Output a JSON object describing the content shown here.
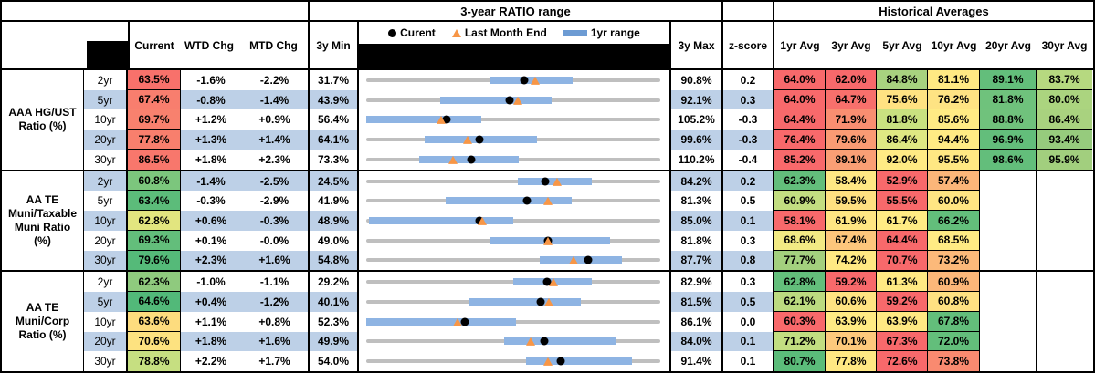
{
  "header": {
    "ratio_range_title": "3-year RATIO range",
    "historical_title": "Historical Averages",
    "col_current": "Current",
    "col_wtd": "WTD Chg",
    "col_mtd": "MTD Chg",
    "col_3y_min": "3y Min",
    "col_3y_max": "3y Max",
    "col_zscore": "z-score",
    "hist_cols": [
      "1yr Avg",
      "3yr Avg",
      "5yr Avg",
      "10yr Avg",
      "20yr Avg",
      "30yr Avg"
    ],
    "legend": [
      {
        "label": "Curent",
        "marker": "current-dot"
      },
      {
        "label": "Last Month End",
        "marker": "last-month-triangle"
      },
      {
        "label": "1yr range",
        "marker": "one-year-range-bar"
      }
    ]
  },
  "colors": {
    "row_band": "#BDD0E7",
    "range_bar": "#8EB4E3",
    "range_track": "#BFBFBF",
    "current_dot": "#000000",
    "last_month_triangle": "#F79646",
    "legend_bar_swatch": "#6D9BD3",
    "heat_red": "#F8696B",
    "heat_yellow": "#FFEB84",
    "heat_green": "#63BE7B"
  },
  "groups": [
    {
      "label": "AAA HG/UST\nRatio (%)",
      "rows": [
        {
          "tenor": "2yr",
          "banded": false,
          "current": "63.5%",
          "current_bg": "#F8716B",
          "wtd": "-1.6%",
          "mtd": "-2.2%",
          "min": "31.7%",
          "max": "90.8%",
          "z": "0.2",
          "bar": [
            41.9,
            70.2
          ],
          "dot": 53.8,
          "tri": 57.5,
          "hist": [
            {
              "v": "64.0%",
              "bg": "#F8696B"
            },
            {
              "v": "62.0%",
              "bg": "#F8696B"
            },
            {
              "v": "84.8%",
              "bg": "#A8D27F"
            },
            {
              "v": "81.1%",
              "bg": "#FFE983"
            },
            {
              "v": "89.1%",
              "bg": "#63BE7B"
            },
            {
              "v": "83.7%",
              "bg": "#B6D980"
            }
          ]
        },
        {
          "tenor": "5yr",
          "banded": true,
          "current": "67.4%",
          "current_bg": "#F87E6E",
          "wtd": "-0.8%",
          "mtd": "-1.4%",
          "min": "43.9%",
          "max": "92.1%",
          "z": "0.3",
          "bar": [
            25.0,
            63.0
          ],
          "dot": 48.8,
          "tri": 51.7,
          "hist": [
            {
              "v": "64.0%",
              "bg": "#F8696B"
            },
            {
              "v": "64.7%",
              "bg": "#F8706C"
            },
            {
              "v": "75.6%",
              "bg": "#FFE282"
            },
            {
              "v": "76.2%",
              "bg": "#FEE383"
            },
            {
              "v": "81.8%",
              "bg": "#6FC27C"
            },
            {
              "v": "80.0%",
              "bg": "#ABD47F"
            }
          ]
        },
        {
          "tenor": "10yr",
          "banded": false,
          "current": "69.7%",
          "current_bg": "#F8816E",
          "wtd": "+1.2%",
          "mtd": "+0.9%",
          "min": "56.4%",
          "max": "105.2%",
          "z": "-0.3",
          "bar": [
            0.0,
            39.0
          ],
          "dot": 27.3,
          "tri": 25.4,
          "hist": [
            {
              "v": "64.4%",
              "bg": "#F8696B"
            },
            {
              "v": "71.9%",
              "bg": "#F98E71"
            },
            {
              "v": "81.8%",
              "bg": "#C9E180"
            },
            {
              "v": "85.6%",
              "bg": "#FFEB84"
            },
            {
              "v": "88.8%",
              "bg": "#70C27C"
            },
            {
              "v": "86.4%",
              "bg": "#A9D27F"
            }
          ]
        },
        {
          "tenor": "20yr",
          "banded": true,
          "current": "77.8%",
          "current_bg": "#F87F6D",
          "wtd": "+1.3%",
          "mtd": "+1.4%",
          "min": "64.1%",
          "max": "99.6%",
          "z": "-0.3",
          "bar": [
            20.0,
            58.0
          ],
          "dot": 38.6,
          "tri": 34.6,
          "hist": [
            {
              "v": "76.4%",
              "bg": "#F8696B"
            },
            {
              "v": "79.6%",
              "bg": "#FA9B74"
            },
            {
              "v": "86.4%",
              "bg": "#DFE883"
            },
            {
              "v": "94.4%",
              "bg": "#FFEB84"
            },
            {
              "v": "96.9%",
              "bg": "#63BE7B"
            },
            {
              "v": "93.4%",
              "bg": "#96CB7D"
            }
          ]
        },
        {
          "tenor": "30yr",
          "banded": false,
          "current": "86.5%",
          "current_bg": "#F8776C",
          "wtd": "+1.8%",
          "mtd": "+2.3%",
          "min": "73.3%",
          "max": "110.2%",
          "z": "-0.4",
          "bar": [
            18.0,
            52.0
          ],
          "dot": 35.8,
          "tri": 29.5,
          "hist": [
            {
              "v": "85.2%",
              "bg": "#F8696B"
            },
            {
              "v": "89.1%",
              "bg": "#FA9F75"
            },
            {
              "v": "92.0%",
              "bg": "#FFEB84"
            },
            {
              "v": "95.5%",
              "bg": "#FFE883"
            },
            {
              "v": "98.6%",
              "bg": "#63BE7B"
            },
            {
              "v": "95.9%",
              "bg": "#A2CF7E"
            }
          ]
        }
      ]
    },
    {
      "label": "AA TE\nMuni/Taxable\nMuni Ratio\n(%)",
      "rows": [
        {
          "tenor": "2yr",
          "banded": true,
          "current": "60.8%",
          "current_bg": "#7CC67D",
          "wtd": "-1.4%",
          "mtd": "-2.5%",
          "min": "24.5%",
          "max": "84.2%",
          "z": "0.2",
          "bar": [
            51.5,
            76.8
          ],
          "dot": 60.8,
          "tri": 65.0,
          "hist": [
            {
              "v": "62.3%",
              "bg": "#63BE7B"
            },
            {
              "v": "58.4%",
              "bg": "#FFE884"
            },
            {
              "v": "52.9%",
              "bg": "#F8696B"
            },
            {
              "v": "57.4%",
              "bg": "#FCB679"
            },
            null,
            null
          ]
        },
        {
          "tenor": "5yr",
          "banded": false,
          "current": "63.4%",
          "current_bg": "#5CBC7A",
          "wtd": "-0.3%",
          "mtd": "-2.9%",
          "min": "41.9%",
          "max": "81.3%",
          "z": "0.5",
          "bar": [
            27.0,
            70.0
          ],
          "dot": 54.6,
          "tri": 61.9,
          "hist": [
            {
              "v": "60.9%",
              "bg": "#C3DE81"
            },
            {
              "v": "59.5%",
              "bg": "#FFE181"
            },
            {
              "v": "55.5%",
              "bg": "#F8696B"
            },
            {
              "v": "60.0%",
              "bg": "#FFE583"
            },
            null,
            null
          ]
        },
        {
          "tenor": "10yr",
          "banded": true,
          "current": "62.8%",
          "current_bg": "#E2E57F",
          "wtd": "+0.6%",
          "mtd": "-0.3%",
          "min": "48.9%",
          "max": "85.0%",
          "z": "0.1",
          "bar": [
            1.0,
            50.0
          ],
          "dot": 38.5,
          "tri": 39.3,
          "hist": [
            {
              "v": "58.1%",
              "bg": "#F8696B"
            },
            {
              "v": "61.9%",
              "bg": "#FFE683"
            },
            {
              "v": "61.7%",
              "bg": "#FFEB84"
            },
            {
              "v": "66.2%",
              "bg": "#63BE7B"
            },
            null,
            null
          ]
        },
        {
          "tenor": "20yr",
          "banded": false,
          "current": "69.3%",
          "current_bg": "#63BE7B",
          "wtd": "+0.1%",
          "mtd": "-0.0%",
          "min": "49.0%",
          "max": "81.8%",
          "z": "0.3",
          "bar": [
            42.0,
            83.0
          ],
          "dot": 61.9,
          "tri": 61.9,
          "hist": [
            {
              "v": "68.6%",
              "bg": "#F2EA84"
            },
            {
              "v": "67.4%",
              "bg": "#FDC67C"
            },
            {
              "v": "64.4%",
              "bg": "#F8696B"
            },
            {
              "v": "68.5%",
              "bg": "#FFEB84"
            },
            null,
            null
          ]
        },
        {
          "tenor": "30yr",
          "banded": true,
          "current": "79.6%",
          "current_bg": "#55BA79",
          "wtd": "+2.3%",
          "mtd": "+1.6%",
          "min": "54.8%",
          "max": "87.7%",
          "z": "0.8",
          "bar": [
            59.0,
            87.0
          ],
          "dot": 75.4,
          "tri": 70.5,
          "hist": [
            {
              "v": "77.7%",
              "bg": "#A3D07E"
            },
            {
              "v": "74.2%",
              "bg": "#FFE983"
            },
            {
              "v": "70.7%",
              "bg": "#F8696B"
            },
            {
              "v": "73.2%",
              "bg": "#FCB97A"
            },
            null,
            null
          ]
        }
      ]
    },
    {
      "label": "AA TE\nMuni/Corp\nRatio (%)",
      "rows": [
        {
          "tenor": "2yr",
          "banded": false,
          "current": "62.3%",
          "current_bg": "#8FCA7E",
          "wtd": "-1.0%",
          "mtd": "-1.1%",
          "min": "29.2%",
          "max": "82.9%",
          "z": "0.3",
          "bar": [
            50.0,
            76.8
          ],
          "dot": 61.6,
          "tri": 63.7,
          "hist": [
            {
              "v": "62.8%",
              "bg": "#63BE7B"
            },
            {
              "v": "59.2%",
              "bg": "#F8696B"
            },
            {
              "v": "61.3%",
              "bg": "#FFE983"
            },
            {
              "v": "60.9%",
              "bg": "#FCB779"
            },
            null,
            null
          ]
        },
        {
          "tenor": "5yr",
          "banded": true,
          "current": "64.6%",
          "current_bg": "#52B979",
          "wtd": "+0.4%",
          "mtd": "-1.2%",
          "min": "40.1%",
          "max": "81.5%",
          "z": "0.5",
          "bar": [
            35.0,
            73.0
          ],
          "dot": 59.2,
          "tri": 62.1,
          "hist": [
            {
              "v": "62.1%",
              "bg": "#BCDB80"
            },
            {
              "v": "60.6%",
              "bg": "#FFE382"
            },
            {
              "v": "59.2%",
              "bg": "#F8696B"
            },
            {
              "v": "60.8%",
              "bg": "#FFE182"
            },
            null,
            null
          ]
        },
        {
          "tenor": "10yr",
          "banded": false,
          "current": "63.6%",
          "current_bg": "#FDDC7E",
          "wtd": "+1.1%",
          "mtd": "+0.8%",
          "min": "52.3%",
          "max": "86.1%",
          "z": "0.0",
          "bar": [
            0.0,
            51.0
          ],
          "dot": 33.4,
          "tri": 31.1,
          "hist": [
            {
              "v": "60.3%",
              "bg": "#F8696B"
            },
            {
              "v": "63.9%",
              "bg": "#FFEB84"
            },
            {
              "v": "63.9%",
              "bg": "#FFE883"
            },
            {
              "v": "67.8%",
              "bg": "#63BE7B"
            },
            null,
            null
          ]
        },
        {
          "tenor": "20yr",
          "banded": true,
          "current": "70.6%",
          "current_bg": "#FDE280",
          "wtd": "+1.8%",
          "mtd": "+1.6%",
          "min": "49.9%",
          "max": "84.0%",
          "z": "0.1",
          "bar": [
            47.0,
            85.0
          ],
          "dot": 60.7,
          "tri": 56.0,
          "hist": [
            {
              "v": "71.2%",
              "bg": "#C2DE81"
            },
            {
              "v": "70.1%",
              "bg": "#FDC97C"
            },
            {
              "v": "67.3%",
              "bg": "#F8696B"
            },
            {
              "v": "72.0%",
              "bg": "#63BE7B"
            },
            null,
            null
          ]
        },
        {
          "tenor": "30yr",
          "banded": false,
          "current": "78.8%",
          "current_bg": "#C6DF81",
          "wtd": "+2.2%",
          "mtd": "+1.7%",
          "min": "54.0%",
          "max": "91.4%",
          "z": "0.1",
          "bar": [
            54.5,
            90.4
          ],
          "dot": 66.3,
          "tri": 61.8,
          "hist": [
            {
              "v": "80.7%",
              "bg": "#5BBC7A"
            },
            {
              "v": "77.8%",
              "bg": "#FFE883"
            },
            {
              "v": "72.6%",
              "bg": "#F8696B"
            },
            {
              "v": "73.8%",
              "bg": "#F98A70"
            },
            null,
            null
          ]
        }
      ]
    }
  ],
  "chart_data": {
    "type": "table",
    "title": "3-year RATIO range / Historical Averages",
    "column_headers": [
      "Current",
      "WTD Chg",
      "MTD Chg",
      "3y Min",
      "3y Max",
      "z-score",
      "1yr Avg",
      "3yr Avg",
      "5yr Avg",
      "10yr Avg",
      "20yr Avg",
      "30yr Avg"
    ],
    "groups": [
      {
        "name": "AAA HG/UST Ratio (%)",
        "tenors": [
          "2yr",
          "5yr",
          "10yr",
          "20yr",
          "30yr"
        ],
        "current": [
          63.5,
          67.4,
          69.7,
          77.8,
          86.5
        ],
        "wtd_chg": [
          -1.6,
          -0.8,
          1.2,
          1.3,
          1.8
        ],
        "mtd_chg": [
          -2.2,
          -1.4,
          0.9,
          1.4,
          2.3
        ],
        "min_3y": [
          31.7,
          43.9,
          56.4,
          64.1,
          73.3
        ],
        "max_3y": [
          90.8,
          92.1,
          105.2,
          99.6,
          110.2
        ],
        "z_score": [
          0.2,
          0.3,
          -0.3,
          -0.3,
          -0.4
        ],
        "avg_1yr": [
          64.0,
          64.0,
          64.4,
          76.4,
          85.2
        ],
        "avg_3yr": [
          62.0,
          64.7,
          71.9,
          79.6,
          89.1
        ],
        "avg_5yr": [
          84.8,
          75.6,
          81.8,
          86.4,
          92.0
        ],
        "avg_10yr": [
          81.1,
          76.2,
          85.6,
          94.4,
          95.5
        ],
        "avg_20yr": [
          89.1,
          81.8,
          88.8,
          96.9,
          98.6
        ],
        "avg_30yr": [
          83.7,
          80.0,
          86.4,
          93.4,
          95.9
        ]
      },
      {
        "name": "AA TE Muni/Taxable Muni Ratio (%)",
        "tenors": [
          "2yr",
          "5yr",
          "10yr",
          "20yr",
          "30yr"
        ],
        "current": [
          60.8,
          63.4,
          62.8,
          69.3,
          79.6
        ],
        "wtd_chg": [
          -1.4,
          -0.3,
          0.6,
          0.1,
          2.3
        ],
        "mtd_chg": [
          -2.5,
          -2.9,
          -0.3,
          -0.0,
          1.6
        ],
        "min_3y": [
          24.5,
          41.9,
          48.9,
          49.0,
          54.8
        ],
        "max_3y": [
          84.2,
          81.3,
          85.0,
          81.8,
          87.7
        ],
        "z_score": [
          0.2,
          0.5,
          0.1,
          0.3,
          0.8
        ],
        "avg_1yr": [
          62.3,
          60.9,
          58.1,
          68.6,
          77.7
        ],
        "avg_3yr": [
          58.4,
          59.5,
          61.9,
          67.4,
          74.2
        ],
        "avg_5yr": [
          52.9,
          55.5,
          61.7,
          64.4,
          70.7
        ],
        "avg_10yr": [
          57.4,
          60.0,
          66.2,
          68.5,
          73.2
        ],
        "avg_20yr": [
          null,
          null,
          null,
          null,
          null
        ],
        "avg_30yr": [
          null,
          null,
          null,
          null,
          null
        ]
      },
      {
        "name": "AA TE Muni/Corp Ratio (%)",
        "tenors": [
          "2yr",
          "5yr",
          "10yr",
          "20yr",
          "30yr"
        ],
        "current": [
          62.3,
          64.6,
          63.6,
          70.6,
          78.8
        ],
        "wtd_chg": [
          -1.0,
          0.4,
          1.1,
          1.8,
          2.2
        ],
        "mtd_chg": [
          -1.1,
          -1.2,
          0.8,
          1.6,
          1.7
        ],
        "min_3y": [
          29.2,
          40.1,
          52.3,
          49.9,
          54.0
        ],
        "max_3y": [
          82.9,
          81.5,
          86.1,
          84.0,
          91.4
        ],
        "z_score": [
          0.3,
          0.5,
          0.0,
          0.1,
          0.1
        ],
        "avg_1yr": [
          62.8,
          62.1,
          60.3,
          71.2,
          80.7
        ],
        "avg_3yr": [
          59.2,
          60.6,
          63.9,
          70.1,
          77.8
        ],
        "avg_5yr": [
          61.3,
          59.2,
          63.9,
          67.3,
          72.6
        ],
        "avg_10yr": [
          60.9,
          60.8,
          67.8,
          72.0,
          73.8
        ],
        "avg_20yr": [
          null,
          null,
          null,
          null,
          null
        ],
        "avg_30yr": [
          null,
          null,
          null,
          null,
          null
        ]
      }
    ]
  }
}
